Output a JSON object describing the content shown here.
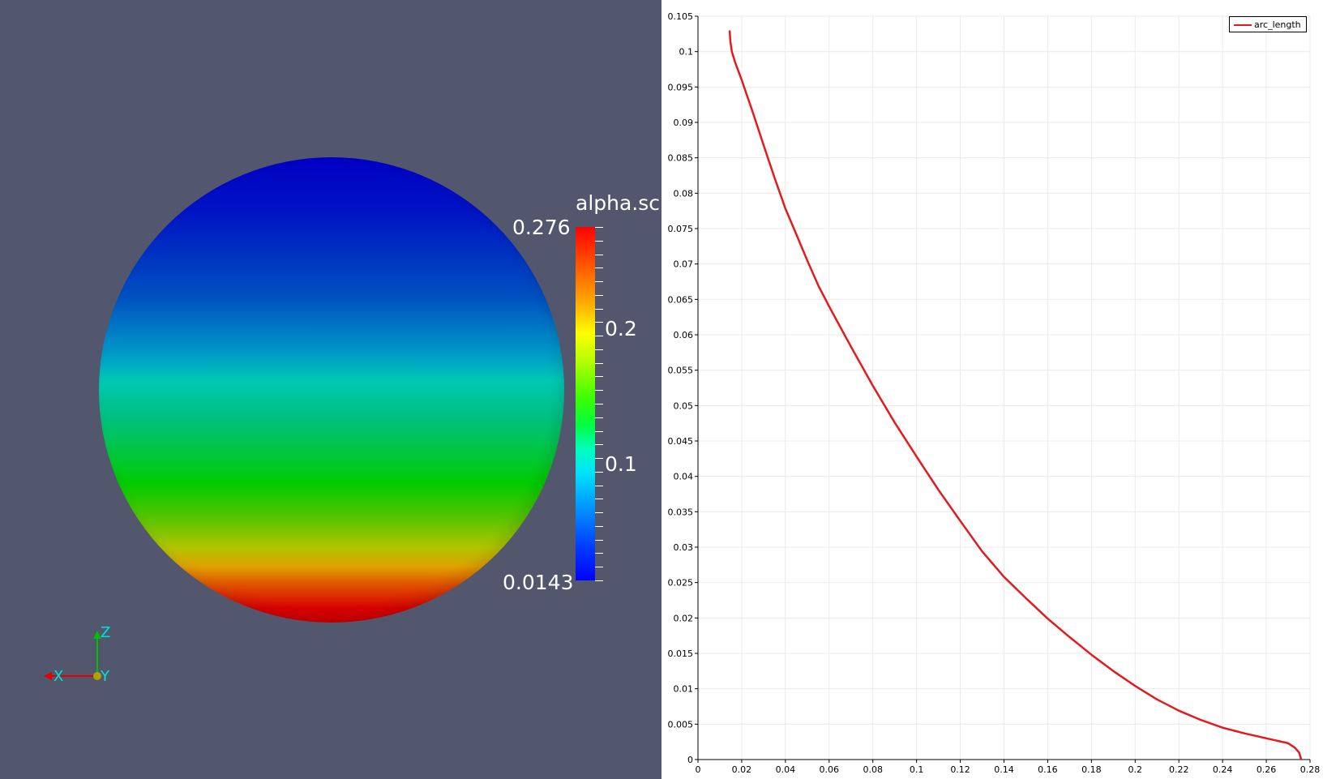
{
  "render_view": {
    "scalar_bar": {
      "title": "alpha.sc",
      "max_label": "0.276",
      "mid_labels": [
        "0.2",
        "0.1"
      ],
      "min_label": "0.0143"
    },
    "axes": {
      "x_label": "X",
      "y_label": "Y",
      "z_label": "Z"
    },
    "colors": {
      "background": "#52576e",
      "x_axis": "#e00000",
      "y_axis": "#d8d800",
      "z_axis": "#00c000"
    }
  },
  "chart_data": {
    "type": "line",
    "title": "",
    "xlabel": "",
    "ylabel": "",
    "xlim": [
      0,
      0.28
    ],
    "ylim": [
      0,
      0.105
    ],
    "x_ticks": [
      "0",
      "0.02",
      "0.04",
      "0.06",
      "0.08",
      "0.1",
      "0.12",
      "0.14",
      "0.16",
      "0.18",
      "0.2",
      "0.22",
      "0.24",
      "0.26",
      "0.28"
    ],
    "y_ticks": [
      "0",
      "0.005",
      "0.01",
      "0.015",
      "0.02",
      "0.025",
      "0.03",
      "0.035",
      "0.04",
      "0.045",
      "0.05",
      "0.055",
      "0.06",
      "0.065",
      "0.07",
      "0.075",
      "0.08",
      "0.085",
      "0.09",
      "0.095",
      "0.1",
      "0.105"
    ],
    "grid": true,
    "legend": "top-right",
    "series": [
      {
        "name": "arc_length",
        "color": "#e41a1c",
        "x": [
          0.0145,
          0.0148,
          0.0155,
          0.017,
          0.02,
          0.025,
          0.03,
          0.035,
          0.04,
          0.045,
          0.05,
          0.055,
          0.06,
          0.07,
          0.08,
          0.09,
          0.1,
          0.11,
          0.12,
          0.13,
          0.14,
          0.15,
          0.16,
          0.17,
          0.18,
          0.19,
          0.2,
          0.21,
          0.22,
          0.23,
          0.24,
          0.25,
          0.26,
          0.27,
          0.273,
          0.275,
          0.276
        ],
        "y": [
          0.103,
          0.1015,
          0.1,
          0.0985,
          0.096,
          0.0915,
          0.0868,
          0.0822,
          0.0778,
          0.0742,
          0.0705,
          0.067,
          0.064,
          0.0583,
          0.0528,
          0.0476,
          0.0428,
          0.0381,
          0.0337,
          0.0294,
          0.0258,
          0.0228,
          0.0199,
          0.0173,
          0.0148,
          0.0125,
          0.0104,
          0.0085,
          0.0069,
          0.0056,
          0.0045,
          0.0037,
          0.003,
          0.0023,
          0.0017,
          0.001,
          0.0
        ]
      }
    ]
  }
}
